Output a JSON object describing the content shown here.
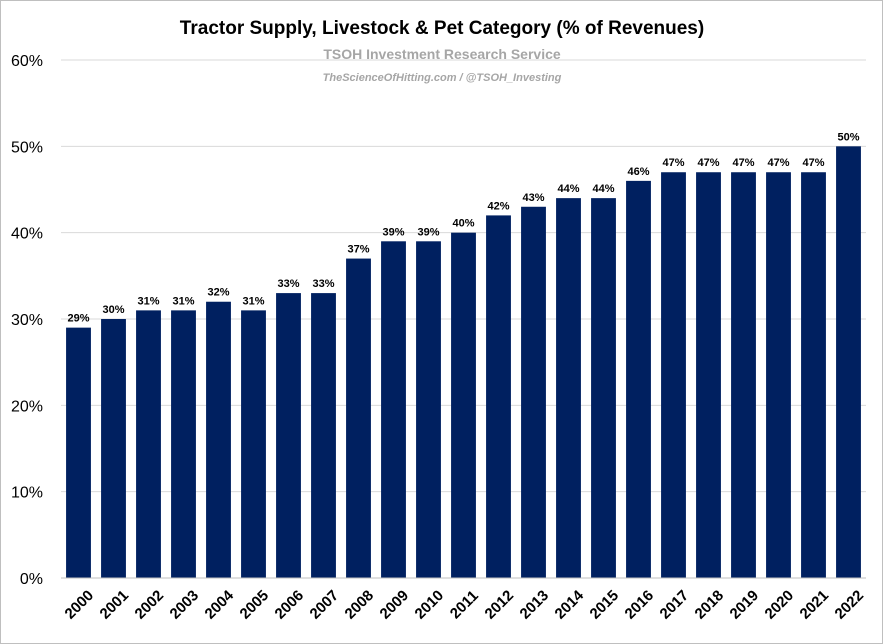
{
  "chart_data": {
    "type": "bar",
    "title": "Tractor Supply, Livestock & Pet Category (% of Revenues)",
    "watermark_line1": "TSOH Investment Research Service",
    "watermark_line2": "TheScienceOfHitting.com / @TSOH_Investing",
    "categories": [
      "2000",
      "2001",
      "2002",
      "2003",
      "2004",
      "2005",
      "2006",
      "2007",
      "2008",
      "2009",
      "2010",
      "2011",
      "2012",
      "2013",
      "2014",
      "2015",
      "2016",
      "2017",
      "2018",
      "2019",
      "2020",
      "2021",
      "2022"
    ],
    "values": [
      29,
      30,
      31,
      31,
      32,
      31,
      33,
      33,
      37,
      39,
      39,
      40,
      42,
      43,
      44,
      44,
      46,
      47,
      47,
      47,
      47,
      47,
      50
    ],
    "data_labels": [
      "29%",
      "30%",
      "31%",
      "31%",
      "32%",
      "31%",
      "33%",
      "33%",
      "37%",
      "39%",
      "39%",
      "40%",
      "42%",
      "43%",
      "44%",
      "44%",
      "46%",
      "47%",
      "47%",
      "47%",
      "47%",
      "47%",
      "50%"
    ],
    "y_ticks": [
      0,
      10,
      20,
      30,
      40,
      50,
      60
    ],
    "y_tick_labels": [
      "0%",
      "10%",
      "20%",
      "30%",
      "40%",
      "50%",
      "60%"
    ],
    "ylim": [
      0,
      60
    ],
    "xlabel": "",
    "ylabel": "",
    "grid": true,
    "legend": false,
    "colors": {
      "bar": "#002060",
      "grid": "#d9d9d9",
      "axis": "#bfbfbf",
      "watermark": "#a6a6a6"
    }
  }
}
